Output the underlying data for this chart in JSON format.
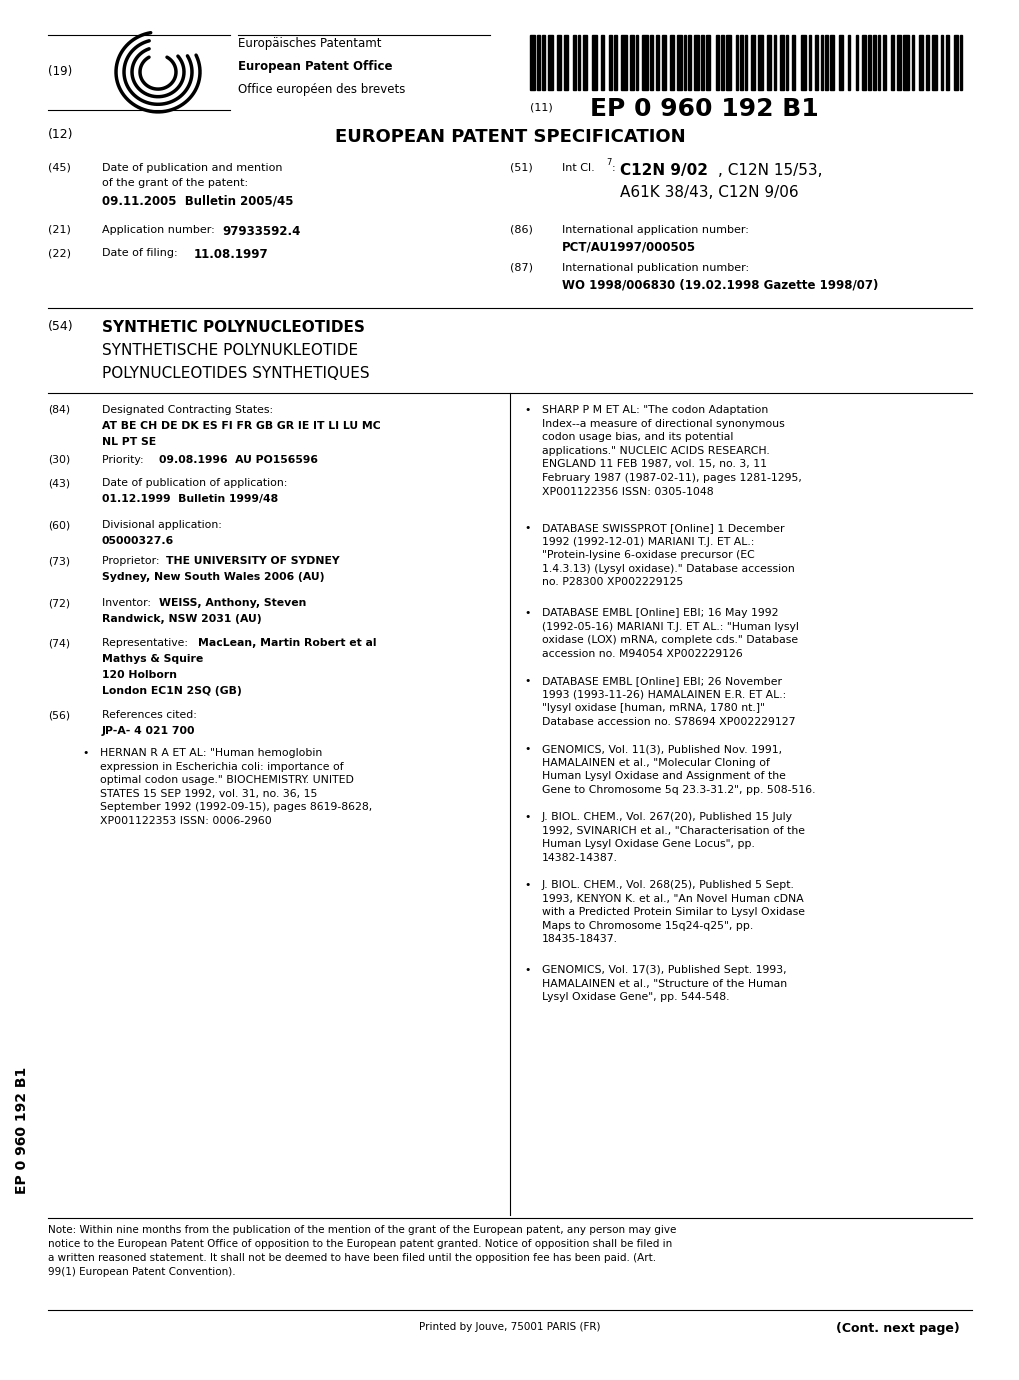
{
  "background_color": "#ffffff",
  "page_width": 10.2,
  "page_height": 13.8,
  "header": {
    "epo_line1": "Europäisches Patentamt",
    "epo_line2": "European Patent Office",
    "epo_line3": "Office européen des brevets",
    "ep_number": "EP 0 960 192 B1",
    "title12": "EUROPEAN PATENT SPECIFICATION"
  },
  "title_section": {
    "title_bold": "SYNTHETIC POLYNUCLEOTIDES",
    "title2": "SYNTHETISCHE POLYNUKLEOTIDE",
    "title3": "POLYNUCLEOTIDES SYNTHETIQUES"
  },
  "footer_printer": "Printed by Jouve, 75001 PARIS (FR)",
  "footer_cont": "(Cont. next page)",
  "sidebar_text": "EP 0 960 192 B1"
}
